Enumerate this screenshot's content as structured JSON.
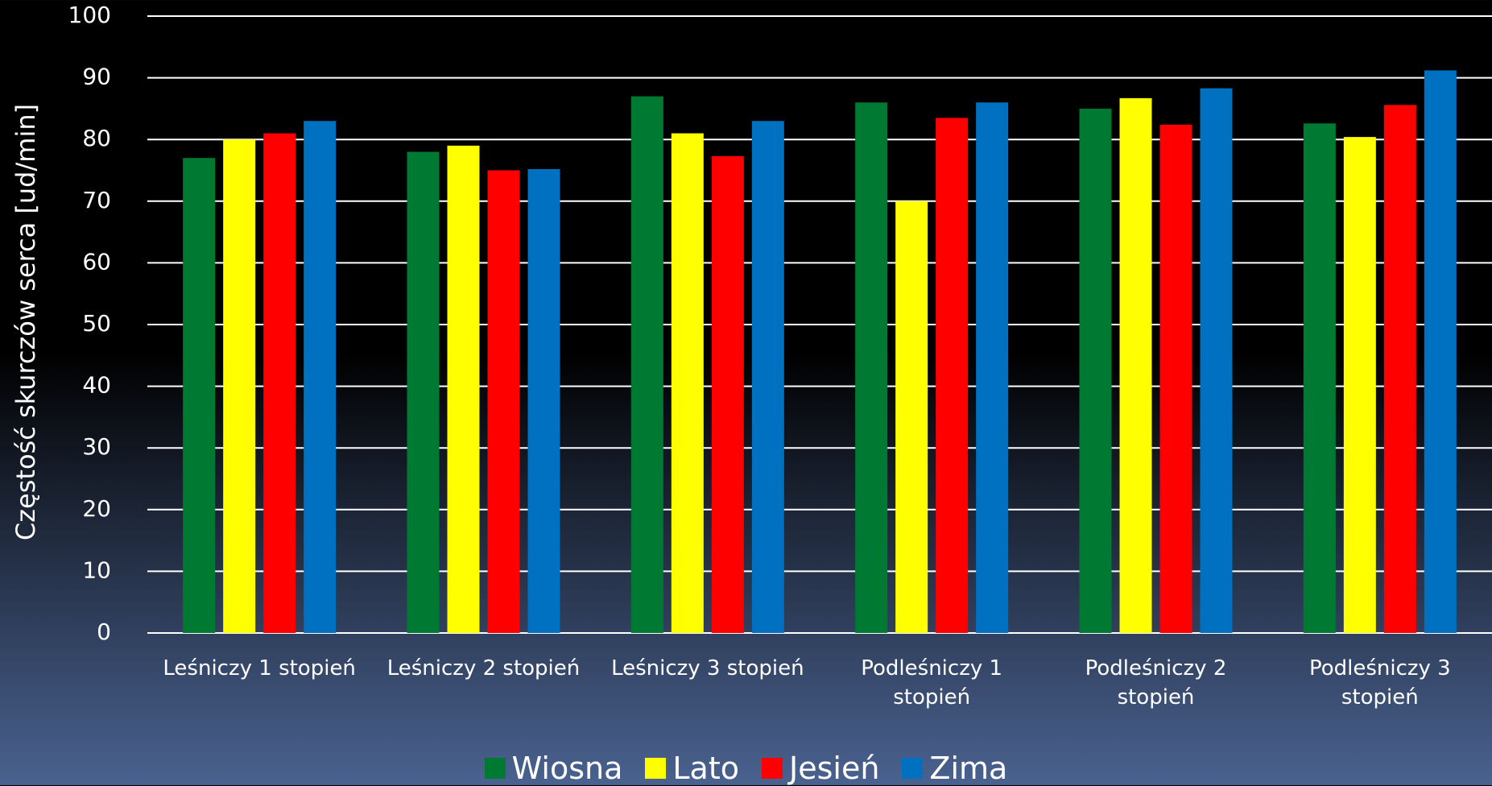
{
  "chart_data": {
    "type": "bar",
    "y_label": "Częstość skurczów serca [ud/min]",
    "categories": [
      "Leśniczy 1 stopień",
      "Leśniczy 2 stopień",
      "Leśniczy 3 stopień",
      "Podleśniczy 1 stopień",
      "Podleśniczy 2 stopień",
      "Podleśniczy 3 stopień"
    ],
    "series": [
      {
        "name": "Wiosna",
        "color": "#007a33",
        "values": [
          77,
          78,
          87,
          86,
          85,
          82.6
        ]
      },
      {
        "name": "Lato",
        "color": "#ffff00",
        "values": [
          80,
          79,
          81,
          70,
          86.7,
          80.4
        ]
      },
      {
        "name": "Jesień",
        "color": "#ff0000",
        "values": [
          81,
          75,
          77.3,
          83.5,
          82.4,
          85.6
        ]
      },
      {
        "name": "Zima",
        "color": "#0070c0",
        "values": [
          83,
          75.2,
          83,
          86,
          88.3,
          91.2
        ]
      }
    ],
    "ylim": [
      0,
      100
    ],
    "yticks": [
      0,
      10,
      20,
      30,
      40,
      50,
      60,
      70,
      80,
      90,
      100
    ],
    "grid": true,
    "legend": "bottom"
  }
}
